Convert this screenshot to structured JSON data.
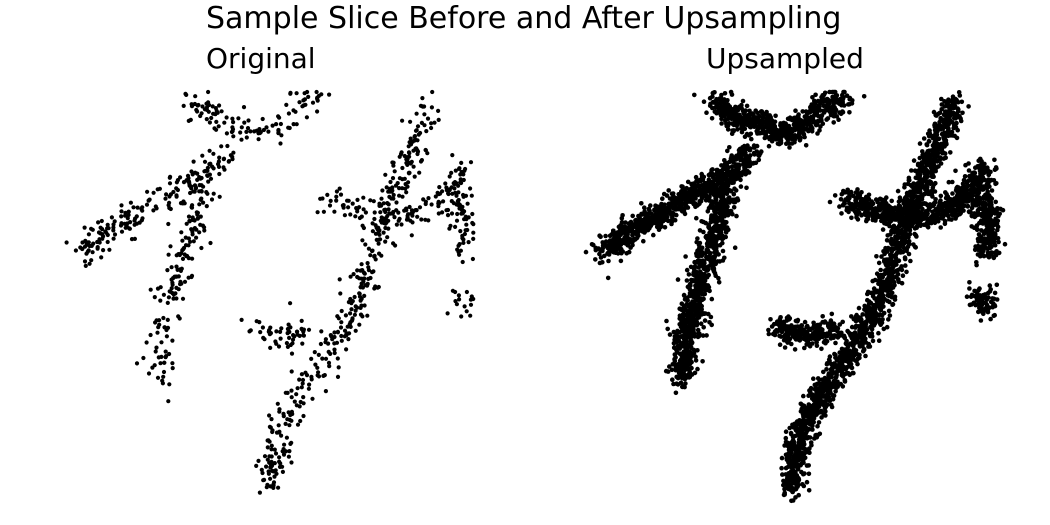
{
  "figure": {
    "suptitle": "Sample Slice Before and After Upsampling",
    "point_color": "#000000"
  },
  "chart_data": [
    {
      "type": "scatter",
      "title": "Original",
      "xlabel": "",
      "ylabel": "",
      "axes_visible": false,
      "grid": false,
      "point_count": 1100,
      "branches": [
        [
          [
            0.3,
            0.02
          ],
          [
            0.36,
            0.06
          ],
          [
            0.42,
            0.08
          ],
          [
            0.48,
            0.1
          ],
          [
            0.52,
            0.08
          ],
          [
            0.56,
            0.04
          ],
          [
            0.62,
            0.02
          ]
        ],
        [
          [
            0.4,
            0.14
          ],
          [
            0.34,
            0.2
          ],
          [
            0.26,
            0.24
          ],
          [
            0.18,
            0.29
          ],
          [
            0.1,
            0.34
          ],
          [
            0.04,
            0.39
          ]
        ],
        [
          [
            0.34,
            0.2
          ],
          [
            0.32,
            0.3
          ],
          [
            0.29,
            0.4
          ],
          [
            0.26,
            0.5
          ],
          [
            0.24,
            0.6
          ],
          [
            0.23,
            0.68
          ]
        ],
        [
          [
            0.88,
            0.02
          ],
          [
            0.84,
            0.12
          ],
          [
            0.8,
            0.22
          ],
          [
            0.76,
            0.32
          ],
          [
            0.73,
            0.42
          ],
          [
            0.7,
            0.5
          ],
          [
            0.66,
            0.58
          ],
          [
            0.62,
            0.64
          ],
          [
            0.56,
            0.72
          ],
          [
            0.52,
            0.8
          ],
          [
            0.5,
            0.88
          ],
          [
            0.49,
            0.95
          ]
        ],
        [
          [
            0.62,
            0.26
          ],
          [
            0.7,
            0.28
          ],
          [
            0.8,
            0.3
          ],
          [
            0.9,
            0.26
          ],
          [
            0.96,
            0.18
          ]
        ],
        [
          [
            0.46,
            0.56
          ],
          [
            0.52,
            0.58
          ],
          [
            0.6,
            0.56
          ]
        ],
        [
          [
            0.94,
            0.24
          ],
          [
            0.96,
            0.3
          ],
          [
            0.95,
            0.38
          ]
        ],
        [
          [
            0.94,
            0.48
          ],
          [
            0.96,
            0.52
          ]
        ]
      ]
    },
    {
      "type": "scatter",
      "title": "Upsampled",
      "xlabel": "",
      "ylabel": "",
      "axes_visible": false,
      "grid": false,
      "point_count": 5200,
      "branches": [
        [
          [
            0.3,
            0.02
          ],
          [
            0.36,
            0.06
          ],
          [
            0.42,
            0.08
          ],
          [
            0.48,
            0.1
          ],
          [
            0.52,
            0.08
          ],
          [
            0.56,
            0.04
          ],
          [
            0.62,
            0.02
          ]
        ],
        [
          [
            0.4,
            0.14
          ],
          [
            0.34,
            0.2
          ],
          [
            0.26,
            0.24
          ],
          [
            0.18,
            0.29
          ],
          [
            0.1,
            0.34
          ],
          [
            0.04,
            0.39
          ]
        ],
        [
          [
            0.34,
            0.2
          ],
          [
            0.32,
            0.3
          ],
          [
            0.29,
            0.4
          ],
          [
            0.26,
            0.5
          ],
          [
            0.24,
            0.6
          ],
          [
            0.23,
            0.68
          ]
        ],
        [
          [
            0.88,
            0.02
          ],
          [
            0.84,
            0.12
          ],
          [
            0.8,
            0.22
          ],
          [
            0.76,
            0.32
          ],
          [
            0.73,
            0.42
          ],
          [
            0.7,
            0.5
          ],
          [
            0.66,
            0.58
          ],
          [
            0.62,
            0.64
          ],
          [
            0.56,
            0.72
          ],
          [
            0.52,
            0.8
          ],
          [
            0.5,
            0.88
          ],
          [
            0.49,
            0.95
          ]
        ],
        [
          [
            0.62,
            0.26
          ],
          [
            0.7,
            0.28
          ],
          [
            0.8,
            0.3
          ],
          [
            0.9,
            0.26
          ],
          [
            0.96,
            0.18
          ]
        ],
        [
          [
            0.46,
            0.56
          ],
          [
            0.52,
            0.58
          ],
          [
            0.6,
            0.56
          ]
        ],
        [
          [
            0.94,
            0.24
          ],
          [
            0.96,
            0.3
          ],
          [
            0.95,
            0.38
          ]
        ],
        [
          [
            0.94,
            0.48
          ],
          [
            0.96,
            0.52
          ]
        ]
      ]
    }
  ]
}
